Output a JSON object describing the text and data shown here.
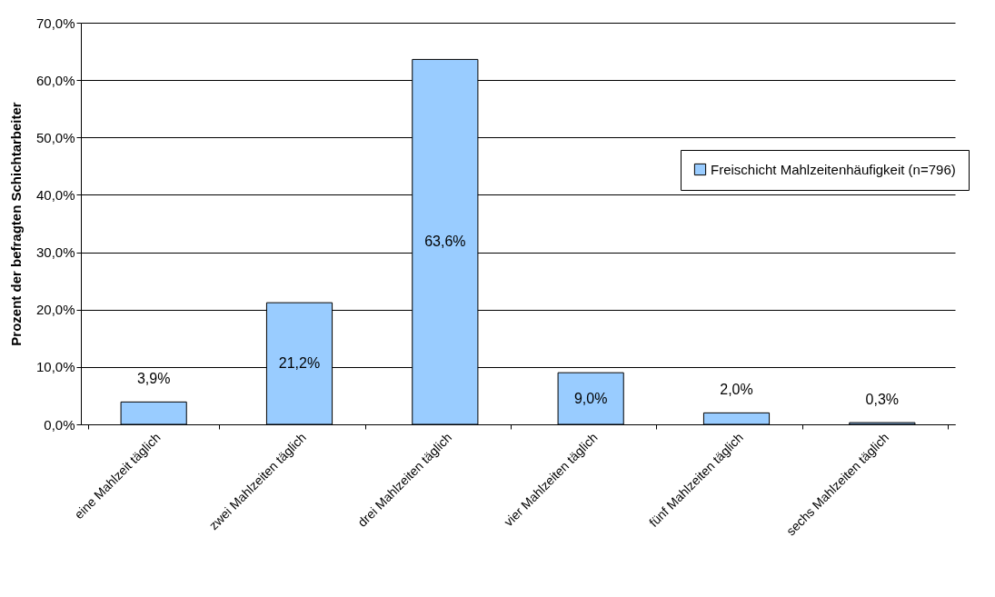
{
  "chart_data": {
    "type": "bar",
    "ylabel": "Prozent der befragten Schichtarbeiter",
    "categories": [
      "eine Mahlzeit täglich",
      "zwei Mahlzeiten täglich",
      "drei Mahlzeiten täglich",
      "vier Mahlzeiten täglich",
      "fünf Mahlzeiten täglich",
      "sechs Mahlzeiten täglich"
    ],
    "series": [
      {
        "name": "Freischicht Mahlzeitenhäufigkeit (n=796)",
        "color": "#99ccff",
        "values": [
          3.9,
          21.2,
          63.6,
          9.0,
          2.0,
          0.3
        ],
        "value_labels": [
          "3,9%",
          "21,2%",
          "63,6%",
          "9,0%",
          "2,0%",
          "0,3%"
        ]
      }
    ],
    "ylim": [
      0,
      70
    ],
    "yticks": [
      {
        "value": 0,
        "label": "0,0%"
      },
      {
        "value": 10,
        "label": "10,0%"
      },
      {
        "value": 20,
        "label": "20,0%"
      },
      {
        "value": 30,
        "label": "30,0%"
      },
      {
        "value": 40,
        "label": "40,0%"
      },
      {
        "value": 50,
        "label": "50,0%"
      },
      {
        "value": 60,
        "label": "60,0%"
      },
      {
        "value": 70,
        "label": "70,0%"
      }
    ],
    "grid": "y",
    "legend": "right"
  }
}
